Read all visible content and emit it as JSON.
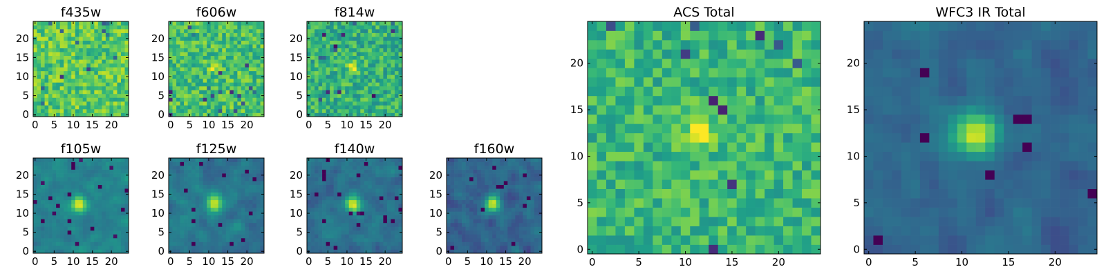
{
  "colormap": "viridis",
  "axis_color": "#000000",
  "chart_data": [
    {
      "type": "heatmap",
      "title": "f435w",
      "xlim": [
        0,
        24
      ],
      "ylim": [
        0,
        24
      ],
      "xticks": [
        0,
        5,
        10,
        15,
        20
      ],
      "yticks": [
        0,
        5,
        10,
        15,
        20
      ],
      "source_peak": [
        11.5,
        12.5
      ],
      "source_sigma": 0.6,
      "source_strength": 0.0,
      "base_level": 0.74,
      "noise": 0.17,
      "seed": 11,
      "smooth": false
    },
    {
      "type": "heatmap",
      "title": "f606w",
      "xlim": [
        0,
        24
      ],
      "ylim": [
        0,
        24
      ],
      "xticks": [
        0,
        5,
        10,
        15,
        20
      ],
      "yticks": [
        0,
        5,
        10,
        15,
        20
      ],
      "source_peak": [
        11.5,
        12.5
      ],
      "source_sigma": 1.0,
      "source_strength": 0.25,
      "base_level": 0.7,
      "noise": 0.17,
      "seed": 23,
      "smooth": false
    },
    {
      "type": "heatmap",
      "title": "f814w",
      "xlim": [
        0,
        24
      ],
      "ylim": [
        0,
        24
      ],
      "xticks": [
        0,
        5,
        10,
        15,
        20
      ],
      "yticks": [
        0,
        5,
        10,
        15,
        20
      ],
      "source_peak": [
        11.5,
        12.5
      ],
      "source_sigma": 1.0,
      "source_strength": 0.35,
      "base_level": 0.64,
      "noise": 0.17,
      "seed": 37,
      "smooth": false
    },
    {
      "type": "heatmap",
      "title": "f105w",
      "xlim": [
        0,
        24
      ],
      "ylim": [
        0,
        24
      ],
      "xticks": [
        0,
        5,
        10,
        15,
        20
      ],
      "yticks": [
        0,
        5,
        10,
        15,
        20
      ],
      "source_peak": [
        11.5,
        12.5
      ],
      "source_sigma": 1.5,
      "source_strength": 0.5,
      "base_level": 0.45,
      "noise": 0.1,
      "seed": 41,
      "smooth": true
    },
    {
      "type": "heatmap",
      "title": "f125w",
      "xlim": [
        0,
        24
      ],
      "ylim": [
        0,
        24
      ],
      "xticks": [
        0,
        5,
        10,
        15,
        20
      ],
      "yticks": [
        0,
        5,
        10,
        15,
        20
      ],
      "source_peak": [
        11.5,
        12.5
      ],
      "source_sigma": 1.5,
      "source_strength": 0.55,
      "base_level": 0.4,
      "noise": 0.11,
      "seed": 53,
      "smooth": true
    },
    {
      "type": "heatmap",
      "title": "f140w",
      "xlim": [
        0,
        24
      ],
      "ylim": [
        0,
        24
      ],
      "xticks": [
        0,
        5,
        10,
        15,
        20
      ],
      "yticks": [
        0,
        5,
        10,
        15,
        20
      ],
      "source_peak": [
        11.5,
        12.5
      ],
      "source_sigma": 1.5,
      "source_strength": 0.55,
      "base_level": 0.38,
      "noise": 0.11,
      "seed": 67,
      "smooth": true
    },
    {
      "type": "heatmap",
      "title": "f160w",
      "xlim": [
        0,
        24
      ],
      "ylim": [
        0,
        24
      ],
      "xticks": [
        0,
        5,
        10,
        15,
        20
      ],
      "yticks": [
        0,
        5,
        10,
        15,
        20
      ],
      "source_peak": [
        11.5,
        12.5
      ],
      "source_sigma": 1.5,
      "source_strength": 0.6,
      "base_level": 0.33,
      "noise": 0.12,
      "seed": 79,
      "smooth": true
    },
    {
      "type": "heatmap",
      "title": "ACS Total",
      "xlim": [
        0,
        24
      ],
      "ylim": [
        0,
        24
      ],
      "xticks": [
        0,
        5,
        10,
        15,
        20
      ],
      "yticks": [
        0,
        5,
        10,
        15,
        20
      ],
      "source_peak": [
        11.5,
        12.5
      ],
      "source_sigma": 1.2,
      "source_strength": 0.35,
      "base_level": 0.66,
      "noise": 0.15,
      "seed": 97,
      "smooth": false
    },
    {
      "type": "heatmap",
      "title": "WFC3 IR Total",
      "xlim": [
        0,
        24
      ],
      "ylim": [
        0,
        24
      ],
      "xticks": [
        0,
        5,
        10,
        15,
        20
      ],
      "yticks": [
        0,
        5,
        10,
        15,
        20
      ],
      "source_peak": [
        11.5,
        12.5
      ],
      "source_sigma": 1.7,
      "source_strength": 0.62,
      "base_level": 0.33,
      "noise": 0.09,
      "seed": 131,
      "smooth": true
    }
  ]
}
